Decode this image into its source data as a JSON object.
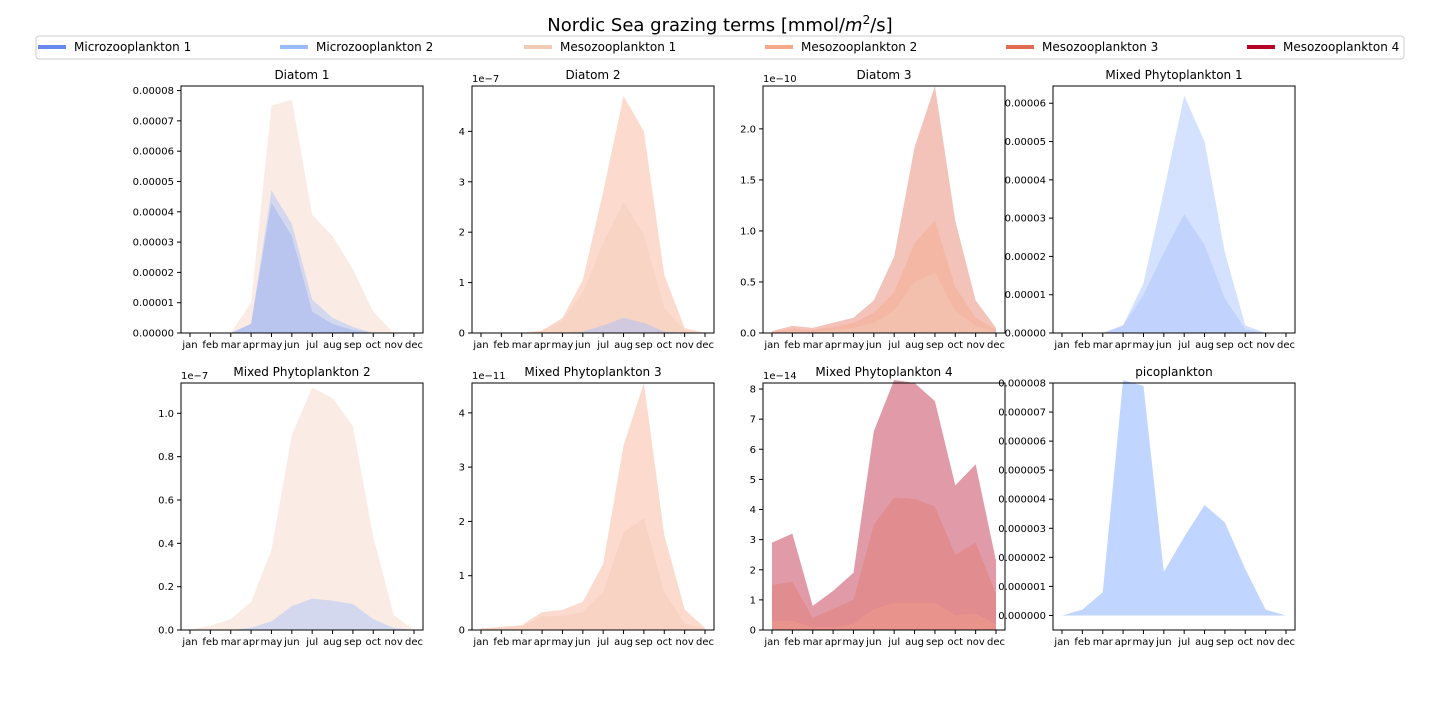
{
  "figure": {
    "title_main": "Nordic Sea grazing terms [mmol/",
    "title_var": "m",
    "title_sup": "2",
    "title_tail": "/s]"
  },
  "legend": {
    "entries": [
      {
        "label": "Microzooplankton 1",
        "color": "#6788ee"
      },
      {
        "label": "Microzooplankton 2",
        "color": "#9abbff"
      },
      {
        "label": "Mesozooplankton 1",
        "color": "#f2cbb7"
      },
      {
        "label": "Mesozooplankton 2",
        "color": "#f7a889"
      },
      {
        "label": "Mesozooplankton 3",
        "color": "#e26952"
      },
      {
        "label": "Mesozooplankton 4",
        "color": "#b40426"
      }
    ]
  },
  "chart_data": [
    {
      "type": "area",
      "title": "Diatom 1",
      "x": [
        "jan",
        "feb",
        "mar",
        "apr",
        "may",
        "jun",
        "jul",
        "aug",
        "sep",
        "oct",
        "nov",
        "dec"
      ],
      "ylim": [
        0,
        8.15e-05
      ],
      "yticks": [
        "0.00000",
        "0.00001",
        "0.00002",
        "0.00003",
        "0.00004",
        "0.00005",
        "0.00006",
        "0.00007",
        "0.00008"
      ],
      "ytick_values": [
        0,
        1e-05,
        2e-05,
        3e-05,
        4e-05,
        5e-05,
        6e-05,
        7e-05,
        8e-05
      ],
      "offset": "",
      "layers": [
        {
          "name": "Mesozooplankton 1",
          "color": "#f2cbb7",
          "opacity": 0.38,
          "values": [
            0,
            0,
            0,
            1e-05,
            7.5e-05,
            7.7e-05,
            3.9e-05,
            3.2e-05,
            2.1e-05,
            7e-06,
            0,
            0
          ]
        },
        {
          "name": "Microzooplankton 2",
          "color": "#9abbff",
          "opacity": 0.4,
          "values": [
            0,
            0,
            0,
            3e-06,
            4.7e-05,
            3.6e-05,
            1.1e-05,
            5e-06,
            2e-06,
            0,
            0,
            0
          ]
        },
        {
          "name": "Microzooplankton 1",
          "color": "#6788ee",
          "opacity": 0.25,
          "values": [
            0,
            0,
            0,
            3e-06,
            4.3e-05,
            3.2e-05,
            7e-06,
            3e-06,
            1e-06,
            0,
            0,
            0
          ]
        }
      ]
    },
    {
      "type": "area",
      "title": "Diatom 2",
      "x": [
        "jan",
        "feb",
        "mar",
        "apr",
        "may",
        "jun",
        "jul",
        "aug",
        "sep",
        "oct",
        "nov",
        "dec"
      ],
      "ylim": [
        0,
        4.9e-07
      ],
      "yticks": [
        "0",
        "1",
        "2",
        "3",
        "4"
      ],
      "ytick_values": [
        0,
        1e-07,
        2e-07,
        3e-07,
        4e-07
      ],
      "offset": "1e−7",
      "layers": [
        {
          "name": "Mesozooplankton 2",
          "color": "#f7a889",
          "opacity": 0.42,
          "values": [
            0,
            0,
            0,
            5e-09,
            3e-08,
            1.05e-07,
            2.8e-07,
            4.7e-07,
            4e-07,
            1.15e-07,
            1e-08,
            0
          ]
        },
        {
          "name": "Mesozooplankton 1",
          "color": "#f2cbb7",
          "opacity": 0.38,
          "values": [
            0,
            0,
            0,
            4e-09,
            2.5e-08,
            8e-08,
            1.8e-07,
            2.6e-07,
            1.95e-07,
            5e-08,
            5e-09,
            0
          ]
        },
        {
          "name": "Microzooplankton 2",
          "color": "#9abbff",
          "opacity": 0.42,
          "values": [
            0,
            0,
            0,
            0,
            0,
            3e-09,
            1.5e-08,
            3e-08,
            2e-08,
            3e-09,
            0,
            0
          ]
        }
      ]
    },
    {
      "type": "area",
      "title": "Diatom 3",
      "x": [
        "jan",
        "feb",
        "mar",
        "apr",
        "may",
        "jun",
        "jul",
        "aug",
        "sep",
        "oct",
        "nov",
        "dec"
      ],
      "ylim": [
        0,
        2.42e-10
      ],
      "yticks": [
        "0.0",
        "0.5",
        "1.0",
        "1.5",
        "2.0"
      ],
      "ytick_values": [
        0,
        5e-11,
        1e-10,
        1.5e-10,
        2e-10
      ],
      "offset": "1e−10",
      "layers": [
        {
          "name": "Mesozooplankton 3",
          "color": "#e26952",
          "opacity": 0.4,
          "values": [
            2e-12,
            7e-12,
            5e-12,
            1e-11,
            1.5e-11,
            3.2e-11,
            7.5e-11,
            1.82e-10,
            2.42e-10,
            1.1e-10,
            3.2e-11,
            5e-12
          ]
        },
        {
          "name": "Mesozooplankton 2",
          "color": "#f7a889",
          "opacity": 0.45,
          "values": [
            1e-12,
            4e-12,
            3e-12,
            6e-12,
            1e-11,
            2e-11,
            4e-11,
            8.8e-11,
            1.1e-10,
            4.5e-11,
            1.5e-11,
            3e-12
          ]
        },
        {
          "name": "Mesozooplankton 1",
          "color": "#f2cbb7",
          "opacity": 0.45,
          "values": [
            0,
            2e-12,
            1e-12,
            3e-12,
            5e-12,
            1e-11,
            2.2e-11,
            5e-11,
            5.9e-11,
            2.2e-11,
            7e-12,
            1e-12
          ]
        }
      ]
    },
    {
      "type": "area",
      "title": "Mixed Phytoplankton 1",
      "x": [
        "jan",
        "feb",
        "mar",
        "apr",
        "may",
        "jun",
        "jul",
        "aug",
        "sep",
        "oct",
        "nov",
        "dec"
      ],
      "ylim": [
        0,
        6.45e-05
      ],
      "yticks": [
        "0.00000",
        "0.00001",
        "0.00002",
        "0.00003",
        "0.00004",
        "0.00005",
        "0.00006"
      ],
      "ytick_values": [
        0,
        1e-05,
        2e-05,
        3e-05,
        4e-05,
        5e-05,
        6e-05
      ],
      "offset": "",
      "layers": [
        {
          "name": "Microzooplankton 2",
          "color": "#9abbff",
          "opacity": 0.42,
          "values": [
            0,
            0,
            0,
            2e-06,
            1.3e-05,
            3.7e-05,
            6.2e-05,
            5e-05,
            2.1e-05,
            2e-06,
            0,
            0
          ]
        },
        {
          "name": "Microzooplankton 1",
          "color": "#6788ee",
          "opacity": 0.18,
          "values": [
            0,
            0,
            0,
            2e-06,
            1e-05,
            2.1e-05,
            3.1e-05,
            2.3e-05,
            9e-06,
            1e-06,
            0,
            0
          ]
        }
      ]
    },
    {
      "type": "area",
      "title": "Mixed Phytoplankton 2",
      "x": [
        "jan",
        "feb",
        "mar",
        "apr",
        "may",
        "jun",
        "jul",
        "aug",
        "sep",
        "oct",
        "nov",
        "dec"
      ],
      "ylim": [
        0,
        1.14e-07
      ],
      "yticks": [
        "0.0",
        "0.2",
        "0.4",
        "0.6",
        "0.8",
        "1.0"
      ],
      "ytick_values": [
        0,
        2e-08,
        4e-08,
        6e-08,
        8e-08,
        1e-07
      ],
      "offset": "1e−7",
      "layers": [
        {
          "name": "Mesozooplankton 1",
          "color": "#f2cbb7",
          "opacity": 0.38,
          "values": [
            0,
            2e-09,
            5e-09,
            1.3e-08,
            3.7e-08,
            9e-08,
            1.12e-07,
            1.07e-07,
            9.4e-08,
            4.3e-08,
            7e-09,
            0
          ]
        },
        {
          "name": "Microzooplankton 2",
          "color": "#9abbff",
          "opacity": 0.4,
          "values": [
            0,
            0,
            0,
            1e-09,
            4e-09,
            1.1e-08,
            1.45e-08,
            1.35e-08,
            1.2e-08,
            5e-09,
            1e-09,
            0
          ]
        }
      ]
    },
    {
      "type": "area",
      "title": "Mixed Phytoplankton 3",
      "x": [
        "jan",
        "feb",
        "mar",
        "apr",
        "may",
        "jun",
        "jul",
        "aug",
        "sep",
        "oct",
        "nov",
        "dec"
      ],
      "ylim": [
        0,
        4.55e-11
      ],
      "yticks": [
        "0",
        "1",
        "2",
        "3",
        "4"
      ],
      "ytick_values": [
        0,
        1e-11,
        2e-11,
        3e-11,
        4e-11
      ],
      "offset": "1e−11",
      "layers": [
        {
          "name": "Mesozooplankton 2",
          "color": "#f7a889",
          "opacity": 0.42,
          "values": [
            3e-13,
            6e-13,
            9e-13,
            3.3e-12,
            3.7e-12,
            5.2e-12,
            1.22e-11,
            3.4e-11,
            4.55e-11,
            1.75e-11,
            3.8e-12,
            4e-13
          ]
        },
        {
          "name": "Mesozooplankton 1",
          "color": "#f2cbb7",
          "opacity": 0.42,
          "values": [
            2e-13,
            4e-13,
            7e-13,
            2.5e-12,
            2.6e-12,
            3.3e-12,
            7e-12,
            1.8e-11,
            2.06e-11,
            7e-12,
            1.2e-12,
            2e-13
          ]
        }
      ]
    },
    {
      "type": "area",
      "title": "Mixed Phytoplankton 4",
      "x": [
        "jan",
        "feb",
        "mar",
        "apr",
        "may",
        "jun",
        "jul",
        "aug",
        "sep",
        "oct",
        "nov",
        "dec"
      ],
      "ylim": [
        0,
        8.2e-14
      ],
      "yticks": [
        "0",
        "1",
        "2",
        "3",
        "4",
        "5",
        "6",
        "7",
        "8"
      ],
      "ytick_values": [
        0,
        1e-14,
        2e-14,
        3e-14,
        4e-14,
        5e-14,
        6e-14,
        7e-14,
        8e-14
      ],
      "offset": "1e−14",
      "layers": [
        {
          "name": "Mesozooplankton 4",
          "color": "#b40426",
          "opacity": 0.4,
          "values": [
            2.9e-14,
            3.2e-14,
            8e-15,
            1.3e-14,
            1.9e-14,
            6.6e-14,
            8.3e-14,
            8.2e-14,
            7.6e-14,
            4.8e-14,
            5.5e-14,
            2.3e-14
          ]
        },
        {
          "name": "Mesozooplankton 3",
          "color": "#e26952",
          "opacity": 0.3,
          "values": [
            1.5e-14,
            1.6e-14,
            4e-15,
            7e-15,
            1e-14,
            3.5e-14,
            4.4e-14,
            4.35e-14,
            4.1e-14,
            2.5e-14,
            2.9e-14,
            1.2e-14
          ]
        },
        {
          "name": "Mesozooplankton 2",
          "color": "#f7a889",
          "opacity": 0.3,
          "values": [
            3e-15,
            3e-15,
            1e-15,
            1e-15,
            2e-15,
            7e-15,
            9e-15,
            9e-15,
            9e-15,
            5e-15,
            5.5e-15,
            2e-15
          ]
        }
      ]
    },
    {
      "type": "area",
      "title": "picoplankton",
      "x": [
        "jan",
        "feb",
        "mar",
        "apr",
        "may",
        "jun",
        "jul",
        "aug",
        "sep",
        "oct",
        "nov",
        "dec"
      ],
      "ylim": [
        -5e-07,
        8e-06
      ],
      "yticks": [
        "0.000000",
        "0.000001",
        "0.000002",
        "0.000003",
        "0.000004",
        "0.000005",
        "0.000006",
        "0.000007",
        "0.000008"
      ],
      "ytick_values": [
        0,
        1e-06,
        2e-06,
        3e-06,
        4e-06,
        5e-06,
        6e-06,
        7e-06,
        8e-06
      ],
      "offset": "",
      "layers": [
        {
          "name": "Microzooplankton 2",
          "color": "#9abbff",
          "opacity": 0.62,
          "values": [
            0,
            2e-07,
            8e-07,
            8.1e-06,
            7.9e-06,
            1.5e-06,
            2.7e-06,
            3.8e-06,
            3.2e-06,
            1.6e-06,
            2e-07,
            0
          ]
        }
      ]
    }
  ]
}
